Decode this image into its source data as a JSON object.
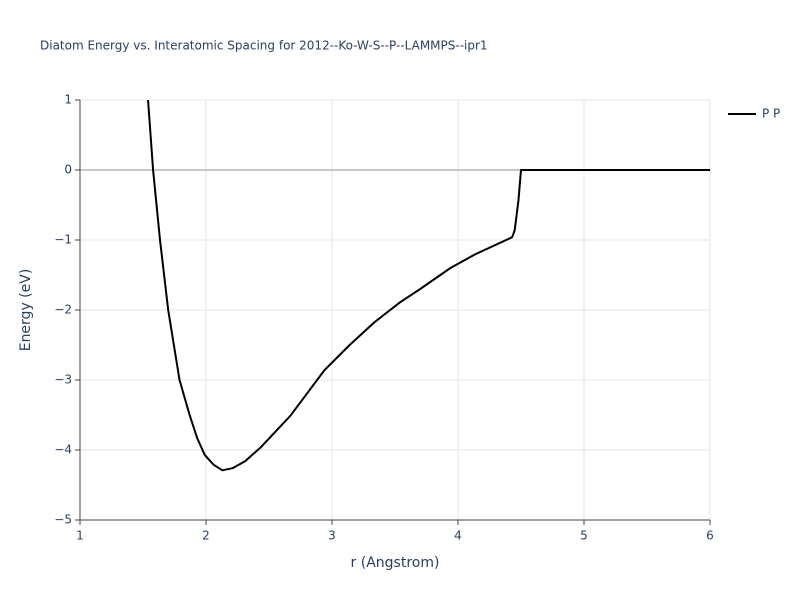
{
  "chart_data": {
    "type": "line",
    "title": "Diatom Energy vs. Interatomic Spacing for 2012--Ko-W-S--P--LAMMPS--ipr1",
    "x_label": "r (Angstrom)",
    "y_label": "Energy (eV)",
    "xlim": [
      1,
      6
    ],
    "ylim": [
      -5,
      1
    ],
    "xticks": [
      1,
      2,
      3,
      4,
      5,
      6
    ],
    "yticks": [
      1,
      0,
      {
        "value": -1,
        "label": "−1"
      },
      {
        "value": -2,
        "label": "−2"
      },
      {
        "value": -3,
        "label": "−3"
      },
      {
        "value": -4,
        "label": "−4"
      },
      {
        "value": -5,
        "label": "−5"
      }
    ],
    "grid": true,
    "legend": "top-right",
    "series": [
      {
        "name": "P P",
        "color": "#000000",
        "x": [
          1.54,
          1.58,
          1.635,
          1.7,
          1.79,
          1.87,
          1.93,
          1.99,
          2.06,
          2.13,
          2.21,
          2.31,
          2.43,
          2.67,
          2.94,
          3.14,
          3.34,
          3.54,
          3.7,
          3.94,
          4.13,
          4.43,
          4.45,
          4.48,
          4.5,
          6
        ],
        "values": [
          1,
          0,
          -1,
          -2,
          -3,
          -3.5,
          -3.83,
          -4.07,
          -4.21,
          -4.29,
          -4.26,
          -4.16,
          -3.97,
          -3.51,
          -2.86,
          -2.5,
          -2.17,
          -1.89,
          -1.7,
          -1.4,
          -1.21,
          -0.96,
          -0.86,
          -0.43,
          0,
          0
        ]
      }
    ]
  }
}
